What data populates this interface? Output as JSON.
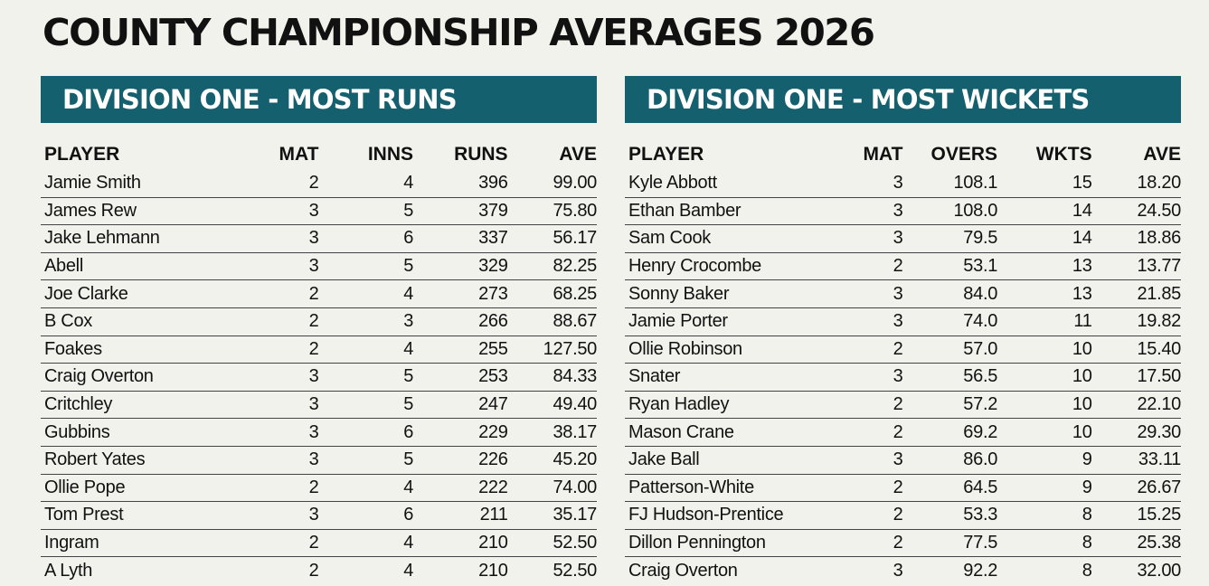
{
  "title": "COUNTY CHAMPIONSHIP  AVERAGES 2026",
  "runs": {
    "heading": "DIVISION ONE - MOST RUNS",
    "columns": [
      "PLAYER",
      "MAT",
      "INNS",
      "RUNS",
      "AVE"
    ],
    "rows": [
      [
        "Jamie Smith",
        "2",
        "4",
        "396",
        "99.00"
      ],
      [
        "James Rew",
        "3",
        "5",
        "379",
        "75.80"
      ],
      [
        "Jake Lehmann",
        "3",
        "6",
        "337",
        "56.17"
      ],
      [
        "Abell",
        "3",
        "5",
        "329",
        "82.25"
      ],
      [
        "Joe Clarke",
        "2",
        "4",
        "273",
        "68.25"
      ],
      [
        "B Cox",
        "2",
        "3",
        "266",
        "88.67"
      ],
      [
        "Foakes",
        "2",
        "4",
        "255",
        "127.50"
      ],
      [
        "Craig Overton",
        "3",
        "5",
        "253",
        "84.33"
      ],
      [
        "Critchley",
        "3",
        "5",
        "247",
        "49.40"
      ],
      [
        "Gubbins",
        "3",
        "6",
        "229",
        "38.17"
      ],
      [
        "Robert Yates",
        "3",
        "5",
        "226",
        "45.20"
      ],
      [
        "Ollie Pope",
        "2",
        "4",
        "222",
        "74.00"
      ],
      [
        "Tom Prest",
        "3",
        "6",
        "211",
        "35.17"
      ],
      [
        "Ingram",
        "2",
        "4",
        "210",
        "52.50"
      ],
      [
        "A Lyth",
        "2",
        "4",
        "210",
        "52.50"
      ]
    ]
  },
  "wickets": {
    "heading": "DIVISION ONE - MOST WICKETS",
    "columns": [
      "PLAYER",
      "MAT",
      "OVERS",
      "WKTS",
      "AVE"
    ],
    "rows": [
      [
        "Kyle Abbott",
        "3",
        "108.1",
        "15",
        "18.20"
      ],
      [
        "Ethan Bamber",
        "3",
        "108.0",
        "14",
        "24.50"
      ],
      [
        "Sam Cook",
        "3",
        "79.5",
        "14",
        "18.86"
      ],
      [
        "Henry Crocombe",
        "2",
        "53.1",
        "13",
        "13.77"
      ],
      [
        "Sonny Baker",
        "3",
        "84.0",
        "13",
        "21.85"
      ],
      [
        "Jamie Porter",
        "3",
        "74.0",
        "11",
        "19.82"
      ],
      [
        "Ollie Robinson",
        "2",
        "57.0",
        "10",
        "15.40"
      ],
      [
        "Snater",
        "3",
        "56.5",
        "10",
        "17.50"
      ],
      [
        "Ryan Hadley",
        "2",
        "57.2",
        "10",
        "22.10"
      ],
      [
        "Mason Crane",
        "2",
        "69.2",
        "10",
        "29.30"
      ],
      [
        "Jake Ball",
        "3",
        "86.0",
        "9",
        "33.11"
      ],
      [
        "Patterson-White",
        "2",
        "64.5",
        "9",
        "26.67"
      ],
      [
        "FJ Hudson-Prentice",
        "2",
        "53.3",
        "8",
        "15.25"
      ],
      [
        "Dillon Pennington",
        "2",
        "77.5",
        "8",
        "25.38"
      ],
      [
        "Craig Overton",
        "3",
        "92.2",
        "8",
        "32.00"
      ]
    ]
  },
  "colors": {
    "banner": "#15606f",
    "background": "#f2f2ed"
  }
}
